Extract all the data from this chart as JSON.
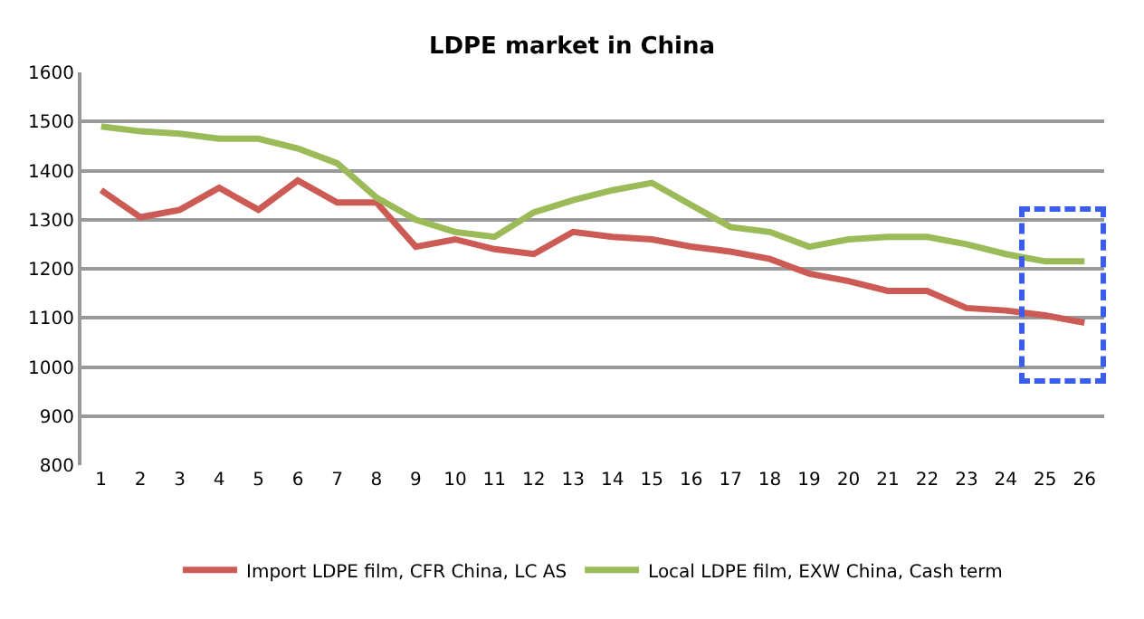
{
  "chart_data": {
    "type": "line",
    "title": "LDPE market in China",
    "x": [
      1,
      2,
      3,
      4,
      5,
      6,
      7,
      8,
      9,
      10,
      11,
      12,
      13,
      14,
      15,
      16,
      17,
      18,
      19,
      20,
      21,
      22,
      23,
      24,
      25,
      26
    ],
    "xlim": [
      0.5,
      26.5
    ],
    "xticks": [
      1,
      2,
      3,
      4,
      5,
      6,
      7,
      8,
      9,
      10,
      11,
      12,
      13,
      14,
      15,
      16,
      17,
      18,
      19,
      20,
      21,
      22,
      23,
      24,
      25,
      26
    ],
    "ylim": [
      800,
      1600
    ],
    "yticks": [
      800,
      900,
      1000,
      1100,
      1200,
      1300,
      1400,
      1500,
      1600
    ],
    "grid": "y",
    "legend": "bottom",
    "marker": "none",
    "line_style": "solid",
    "series": [
      {
        "name": "Import LDPE film, CFR China, LC AS",
        "color": "#cd5b55",
        "values": [
          1360,
          1305,
          1320,
          1365,
          1320,
          1380,
          1335,
          1335,
          1245,
          1260,
          1240,
          1230,
          1275,
          1265,
          1260,
          1245,
          1235,
          1220,
          1190,
          1175,
          1155,
          1155,
          1120,
          1115,
          1105,
          1090
        ]
      },
      {
        "name": "Local LDPE film, EXW China, Cash term",
        "color": "#9bbb59",
        "values": [
          1490,
          1480,
          1475,
          1465,
          1465,
          1445,
          1415,
          1345,
          1300,
          1275,
          1265,
          1315,
          1340,
          1360,
          1375,
          1330,
          1285,
          1275,
          1245,
          1260,
          1265,
          1265,
          1250,
          1230,
          1215,
          1215
        ]
      }
    ]
  }
}
